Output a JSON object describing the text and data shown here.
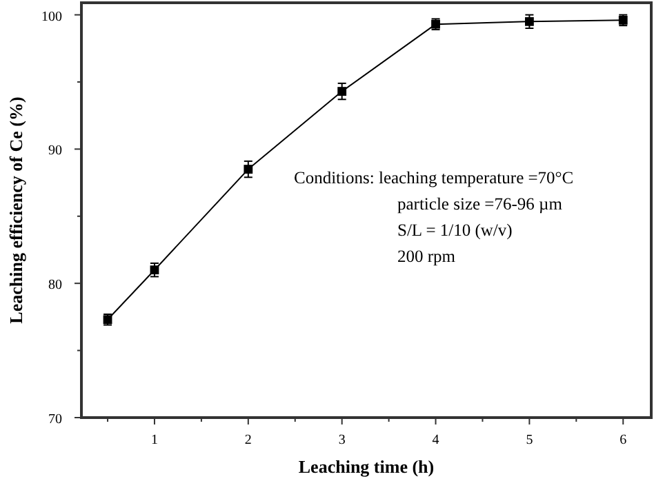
{
  "chart_data": {
    "type": "line",
    "xlabel": "Leaching time (h)",
    "ylabel": "Leaching efficiency of Ce (%)",
    "x": [
      0.5,
      1,
      2,
      3,
      4,
      5,
      6
    ],
    "series": [
      {
        "color": "#000000",
        "values": [
          77.3,
          81.0,
          88.5,
          94.3,
          99.3,
          99.5,
          99.6
        ],
        "errors": [
          0.4,
          0.5,
          0.6,
          0.6,
          0.4,
          0.5,
          0.4
        ]
      }
    ],
    "marker": "square",
    "line_style": "solid",
    "xlim": [
      0.22,
      6.3
    ],
    "xticks": [
      {
        "value": 0.5,
        "label": null
      },
      1,
      {
        "value": 1.5,
        "label": null
      },
      2,
      {
        "value": 2.5,
        "label": null
      },
      3,
      {
        "value": 3.5,
        "label": null
      },
      4,
      {
        "value": 4.5,
        "label": null
      },
      5,
      {
        "value": 5.5,
        "label": null
      },
      6
    ],
    "ylim": [
      70,
      100.9
    ],
    "yticks": [
      70,
      {
        "value": 75,
        "label": null
      },
      80,
      {
        "value": 85,
        "label": null
      },
      90,
      {
        "value": 95,
        "label": null
      },
      100
    ],
    "annotations": [
      "Conditions: leaching temperature =70°C",
      "particle size =76-96 µm",
      "S/L = 1/10 (w/v)",
      "200 rpm"
    ]
  }
}
